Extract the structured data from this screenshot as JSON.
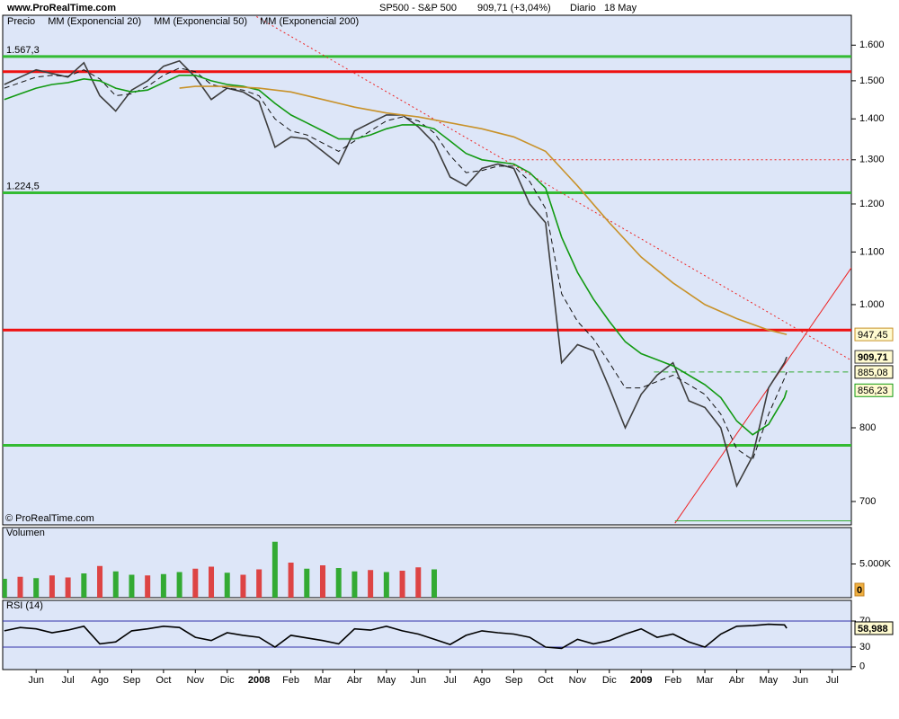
{
  "header": {
    "site": "www.ProRealTime.com",
    "symbol": "SP500 - S&P 500",
    "quote": "909,71 (+3,04%)",
    "period": "Diario",
    "date": "18 May"
  },
  "chart_data": [
    {
      "type": "line",
      "log_scale": true,
      "legend": "top-left",
      "footnote": "© ProRealTime.com",
      "ylim": [
        671,
        1689
      ],
      "yticks": [
        700,
        800,
        {
          "value": 1000,
          "label": "1.000"
        },
        {
          "value": 1100,
          "label": "1.100"
        },
        {
          "value": 1200,
          "label": "1.200"
        },
        {
          "value": 1300,
          "label": "1.300"
        },
        {
          "value": 1400,
          "label": "1.400"
        },
        {
          "value": 1500,
          "label": "1.500"
        },
        {
          "value": 1600,
          "label": "1.600"
        }
      ],
      "series": [
        {
          "name": "Precio",
          "color": "#3d3d3d",
          "style": "solid",
          "x": [
            -1,
            -0.5,
            0,
            0.5,
            1,
            1.5,
            2,
            2.5,
            3,
            3.5,
            4,
            4.5,
            5,
            5.5,
            6,
            6.5,
            7,
            7.5,
            8,
            8.5,
            9,
            9.5,
            10,
            10.5,
            11,
            11.5,
            12,
            12.5,
            13,
            13.5,
            14,
            14.5,
            15,
            15.5,
            16,
            16.5,
            17,
            17.5,
            18,
            18.5,
            19,
            19.5,
            20,
            20.5,
            21,
            21.5,
            22,
            22.5,
            23,
            23.5,
            23.57
          ],
          "values": [
            1490,
            1510,
            1530,
            1520,
            1510,
            1550,
            1460,
            1420,
            1475,
            1500,
            1540,
            1555,
            1510,
            1450,
            1480,
            1470,
            1445,
            1330,
            1355,
            1350,
            1320,
            1290,
            1370,
            1390,
            1410,
            1410,
            1380,
            1340,
            1260,
            1240,
            1280,
            1290,
            1280,
            1200,
            1160,
            900,
            930,
            920,
            860,
            800,
            850,
            880,
            900,
            840,
            830,
            800,
            720,
            760,
            860,
            900,
            909.71
          ],
          "value_labels": {
            "50": "909,71"
          }
        },
        {
          "name": "MM (Exponencial 20)",
          "color": "#111111",
          "style": "dashed",
          "x": [
            -1,
            -0.5,
            0,
            0.5,
            1,
            1.5,
            2,
            2.5,
            3,
            3.5,
            4,
            4.5,
            5,
            5.5,
            6,
            6.5,
            7,
            7.5,
            8,
            8.5,
            9,
            9.5,
            10,
            10.5,
            11,
            11.5,
            12,
            12.5,
            13,
            13.5,
            14,
            14.5,
            15,
            15.5,
            16,
            16.5,
            17,
            17.5,
            18,
            18.5,
            19,
            19.5,
            20,
            20.5,
            21,
            21.5,
            22,
            22.5,
            23,
            23.5,
            23.57
          ],
          "values": [
            1480,
            1495,
            1510,
            1515,
            1512,
            1530,
            1505,
            1460,
            1465,
            1485,
            1515,
            1535,
            1525,
            1490,
            1480,
            1475,
            1460,
            1400,
            1370,
            1360,
            1340,
            1320,
            1345,
            1370,
            1395,
            1405,
            1395,
            1365,
            1310,
            1270,
            1275,
            1285,
            1285,
            1250,
            1190,
            1020,
            970,
            940,
            900,
            860,
            860,
            870,
            880,
            865,
            850,
            820,
            770,
            755,
            820,
            875,
            885.08
          ],
          "value_labels": {
            "50": "885,08"
          }
        },
        {
          "name": "MM (Exponencial 50)",
          "color": "#129a12",
          "style": "solid",
          "x": [
            -1,
            -0.5,
            0,
            0.5,
            1,
            1.5,
            2,
            2.5,
            3,
            3.5,
            4,
            4.5,
            5,
            5.5,
            6,
            6.5,
            7,
            7.5,
            8,
            8.5,
            9,
            9.5,
            10,
            10.5,
            11,
            11.5,
            12,
            12.5,
            13,
            13.5,
            14,
            14.5,
            15,
            15.5,
            16,
            16.5,
            17,
            17.5,
            18,
            18.5,
            19,
            19.5,
            20,
            20.5,
            21,
            21.5,
            22,
            22.5,
            23,
            23.5,
            23.57
          ],
          "values": [
            1450,
            1465,
            1480,
            1490,
            1495,
            1505,
            1500,
            1480,
            1470,
            1475,
            1495,
            1515,
            1515,
            1500,
            1490,
            1485,
            1475,
            1440,
            1410,
            1390,
            1370,
            1350,
            1350,
            1360,
            1375,
            1385,
            1385,
            1375,
            1345,
            1315,
            1300,
            1295,
            1290,
            1270,
            1235,
            1130,
            1060,
            1010,
            970,
            935,
            915,
            905,
            895,
            880,
            865,
            845,
            810,
            790,
            805,
            845,
            856.23
          ],
          "value_labels": {
            "50": "856,23"
          }
        },
        {
          "name": "MM (Exponencial 200)",
          "color": "#c8922a",
          "style": "solid",
          "x": [
            4.5,
            5,
            6,
            7,
            8,
            9,
            10,
            11,
            12,
            13,
            14,
            15,
            16,
            17,
            18,
            19,
            20,
            21,
            22,
            23,
            23.57
          ],
          "values": [
            1480,
            1485,
            1485,
            1480,
            1470,
            1450,
            1430,
            1415,
            1405,
            1390,
            1375,
            1355,
            1320,
            1240,
            1160,
            1090,
            1040,
            1000,
            975,
            955,
            947.45
          ],
          "value_labels": {
            "20": "947,45"
          }
        }
      ],
      "levels": [
        {
          "value": 1567.3,
          "label": "1.567,3",
          "color": "#33bb33"
        },
        {
          "value": 1525,
          "color": "#ee1111"
        },
        {
          "value": 1224.5,
          "label": "1.224,5",
          "color": "#33bb33"
        },
        {
          "value": 955,
          "color": "#ee1111"
        },
        {
          "value": 775,
          "color": "#33bb33"
        }
      ],
      "segments": [
        {
          "x": [
            6.92,
            25.6
          ],
          "y": [
            1685,
            904
          ],
          "color": "#ee2222",
          "style": "dotted"
        },
        {
          "x": [
            14.86,
            25.6
          ],
          "y": [
            1300,
            1300
          ],
          "color": "#ee2222",
          "style": "dotted"
        },
        {
          "x": [
            20.06,
            25.6
          ],
          "y": [
            673,
            1069
          ],
          "color": "#ee2222",
          "style": "solid"
        },
        {
          "x": [
            19.4,
            25.6
          ],
          "y": [
            885.08,
            885.08
          ],
          "color": "#33aa33",
          "style": "dashed"
        },
        {
          "x": [
            20.06,
            25.6
          ],
          "y": [
            676,
            676
          ],
          "color": "#33aa33",
          "style": "solid"
        }
      ]
    },
    {
      "type": "bar",
      "title": "Volumen",
      "ylim": [
        0,
        10400
      ],
      "yticks": [
        {
          "value": 5000,
          "label": "5.000K"
        }
      ],
      "x": [
        -1,
        -0.5,
        0,
        0.5,
        1,
        1.5,
        2,
        2.5,
        3,
        3.5,
        4,
        4.5,
        5,
        5.5,
        6,
        6.5,
        7,
        7.5,
        8,
        8.5,
        9,
        9.5,
        10,
        10.5,
        11,
        11.5,
        12,
        12.5,
        23.57
      ],
      "values": [
        2800,
        3100,
        2900,
        3300,
        3000,
        3600,
        4700,
        3900,
        3400,
        3300,
        3500,
        3800,
        4300,
        4600,
        3700,
        3400,
        4200,
        8300,
        5200,
        4300,
        4800,
        4400,
        3900,
        4100,
        3800,
        4000,
        4500,
        4200,
        0
      ],
      "colors": [
        "#33aa33",
        "#dd4444",
        "#33aa33",
        "#dd4444",
        "#dd4444",
        "#33aa33",
        "#dd4444",
        "#33aa33",
        "#33aa33",
        "#dd4444",
        "#33aa33",
        "#33aa33",
        "#dd4444",
        "#dd4444",
        "#33aa33",
        "#dd4444",
        "#dd4444",
        "#33aa33",
        "#dd4444",
        "#33aa33",
        "#dd4444",
        "#33aa33",
        "#33aa33",
        "#dd4444",
        "#33aa33",
        "#dd4444",
        "#dd4444",
        "#33aa33",
        "#33aa33"
      ],
      "value_labels": {
        "28": "0"
      }
    },
    {
      "type": "line",
      "title": "RSI (14)",
      "ylim": [
        -4.5,
        101.7
      ],
      "yticks": [
        0,
        30,
        70
      ],
      "levels": [
        {
          "value": 70,
          "color": "#3333aa"
        },
        {
          "value": 30,
          "color": "#3333aa"
        }
      ],
      "series": [
        {
          "name": "RSI",
          "color": "#000000",
          "style": "solid",
          "x": [
            -1,
            -0.5,
            0,
            0.5,
            1,
            1.5,
            2,
            2.5,
            3,
            3.5,
            4,
            4.5,
            5,
            5.5,
            6,
            6.5,
            7,
            7.5,
            8,
            8.5,
            9,
            9.5,
            10,
            10.5,
            11,
            11.5,
            12,
            12.5,
            13,
            13.5,
            14,
            14.5,
            15,
            15.5,
            16,
            16.5,
            17,
            17.5,
            18,
            18.5,
            19,
            19.5,
            20,
            20.5,
            21,
            21.5,
            22,
            22.5,
            23,
            23.5,
            23.57
          ],
          "values": [
            55,
            60,
            58,
            52,
            56,
            62,
            35,
            38,
            55,
            58,
            62,
            60,
            45,
            40,
            52,
            48,
            45,
            30,
            48,
            44,
            40,
            35,
            58,
            56,
            62,
            55,
            50,
            42,
            34,
            48,
            55,
            52,
            50,
            45,
            30,
            28,
            42,
            35,
            40,
            50,
            58,
            45,
            50,
            38,
            30,
            50,
            62,
            63,
            65,
            64,
            58.988
          ],
          "value_labels": {
            "50": "58,988"
          }
        }
      ],
      "xlim": [
        -1.05,
        25.6
      ],
      "xticks": [
        {
          "value": 0,
          "label": "Jun"
        },
        {
          "value": 1,
          "label": "Jul"
        },
        {
          "value": 2,
          "label": "Ago"
        },
        {
          "value": 3,
          "label": "Sep"
        },
        {
          "value": 4,
          "label": "Oct"
        },
        {
          "value": 5,
          "label": "Nov"
        },
        {
          "value": 6,
          "label": "Dic"
        },
        {
          "value": 7,
          "label": "2008"
        },
        {
          "value": 8,
          "label": "Feb"
        },
        {
          "value": 9,
          "label": "Mar"
        },
        {
          "value": 10,
          "label": "Abr"
        },
        {
          "value": 11,
          "label": "May"
        },
        {
          "value": 12,
          "label": "Jun"
        },
        {
          "value": 13,
          "label": "Jul"
        },
        {
          "value": 14,
          "label": "Ago"
        },
        {
          "value": 15,
          "label": "Sep"
        },
        {
          "value": 16,
          "label": "Oct"
        },
        {
          "value": 17,
          "label": "Nov"
        },
        {
          "value": 18,
          "label": "Dic"
        },
        {
          "value": 19,
          "label": "2009"
        },
        {
          "value": 20,
          "label": "Feb"
        },
        {
          "value": 21,
          "label": "Mar"
        },
        {
          "value": 22,
          "label": "Abr"
        },
        {
          "value": 23,
          "label": "May"
        },
        {
          "value": 24,
          "label": "Jun"
        },
        {
          "value": 25,
          "label": "Jul"
        }
      ]
    }
  ]
}
